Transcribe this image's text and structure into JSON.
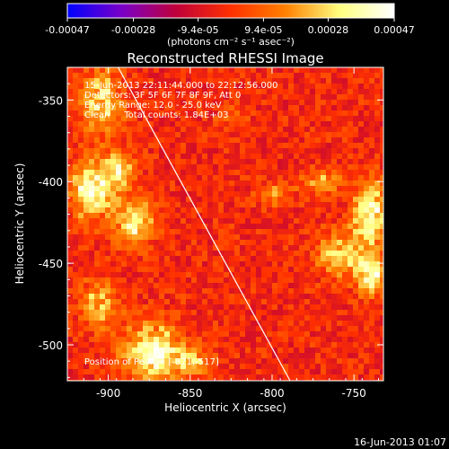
{
  "colorbar": {
    "tick_labels": [
      "-0.00047",
      "-0.00028",
      "-9.4e-05",
      "9.4e-05",
      "0.00028",
      "0.00047"
    ],
    "tick_values": [
      -0.00047,
      -0.00028,
      -9.4e-05,
      9.4e-05,
      0.00028,
      0.00047
    ],
    "range": [
      -0.00047,
      0.00047
    ],
    "units": "(photons cm⁻² s⁻¹ asec⁻²)",
    "colors": [
      "#0000ff",
      "#7a00c8",
      "#c0003a",
      "#ff3000",
      "#ff8000",
      "#ffff80",
      "#ffffff"
    ]
  },
  "plot": {
    "title": "Reconstructed RHESSI Image",
    "info_lines": [
      "15-Jun-2013 22:11:44.000 to 22:12:56.000",
      "Detectors: 3F 5F 6F 7F 8F 9F, Att 0",
      "Energy Range: 12.0 - 25.0 keV",
      "Clean     Total counts: 1.84E+03"
    ],
    "peak_label": "Position of Peak = [-871,-517]",
    "xlabel": "Heliocentric X (arcsec)",
    "ylabel": "Heliocentric Y (arcsec)"
  },
  "footer": {
    "timestamp": "16-Jun-2013 01:07"
  },
  "chart_data": {
    "type": "heatmap",
    "title": "Reconstructed RHESSI Image",
    "xlabel": "Heliocentric X (arcsec)",
    "ylabel": "Heliocentric Y (arcsec)",
    "xlim": [
      -925,
      -732
    ],
    "ylim": [
      -522,
      -330
    ],
    "x_ticks": [
      -900,
      -850,
      -800,
      -750
    ],
    "y_ticks": [
      -350,
      -400,
      -450,
      -500
    ],
    "x_tick_labels": [
      "-900",
      "-850",
      "-800",
      "-750"
    ],
    "y_tick_labels": [
      "-350",
      "-400",
      "-450",
      "-500"
    ],
    "limb_line": [
      [
        -894,
        -330
      ],
      [
        -789,
        -522
      ]
    ],
    "peak": [
      -871,
      -517
    ],
    "colorscale_range": [
      -0.00047,
      0.00047
    ],
    "sources": [
      {
        "x": -910,
        "y": -405,
        "sx": 9,
        "sy": 12,
        "value": 0.00044
      },
      {
        "x": -904,
        "y": -352,
        "sx": 9,
        "sy": 14,
        "value": 0.00032
      },
      {
        "x": -884,
        "y": -425,
        "sx": 8,
        "sy": 10,
        "value": 0.00036
      },
      {
        "x": -893,
        "y": -392,
        "sx": 6,
        "sy": 8,
        "value": 0.0003
      },
      {
        "x": -872,
        "y": -505,
        "sx": 12,
        "sy": 12,
        "value": 0.00045
      },
      {
        "x": -905,
        "y": -475,
        "sx": 8,
        "sy": 11,
        "value": 0.00027
      },
      {
        "x": -848,
        "y": -510,
        "sx": 8,
        "sy": 6,
        "value": 0.00024
      },
      {
        "x": -740,
        "y": -420,
        "sx": 7,
        "sy": 15,
        "value": 0.00042
      },
      {
        "x": -739,
        "y": -458,
        "sx": 6,
        "sy": 8,
        "value": 0.0004
      },
      {
        "x": -770,
        "y": -400,
        "sx": 9,
        "sy": 5,
        "value": 0.00022
      },
      {
        "x": -757,
        "y": -445,
        "sx": 10,
        "sy": 10,
        "value": 0.0003
      },
      {
        "x": -798,
        "y": -408,
        "sx": 7,
        "sy": 5,
        "value": 0.00018
      },
      {
        "x": -825,
        "y": -360,
        "sx": 6,
        "sy": 5,
        "value": 0.00012
      }
    ]
  }
}
